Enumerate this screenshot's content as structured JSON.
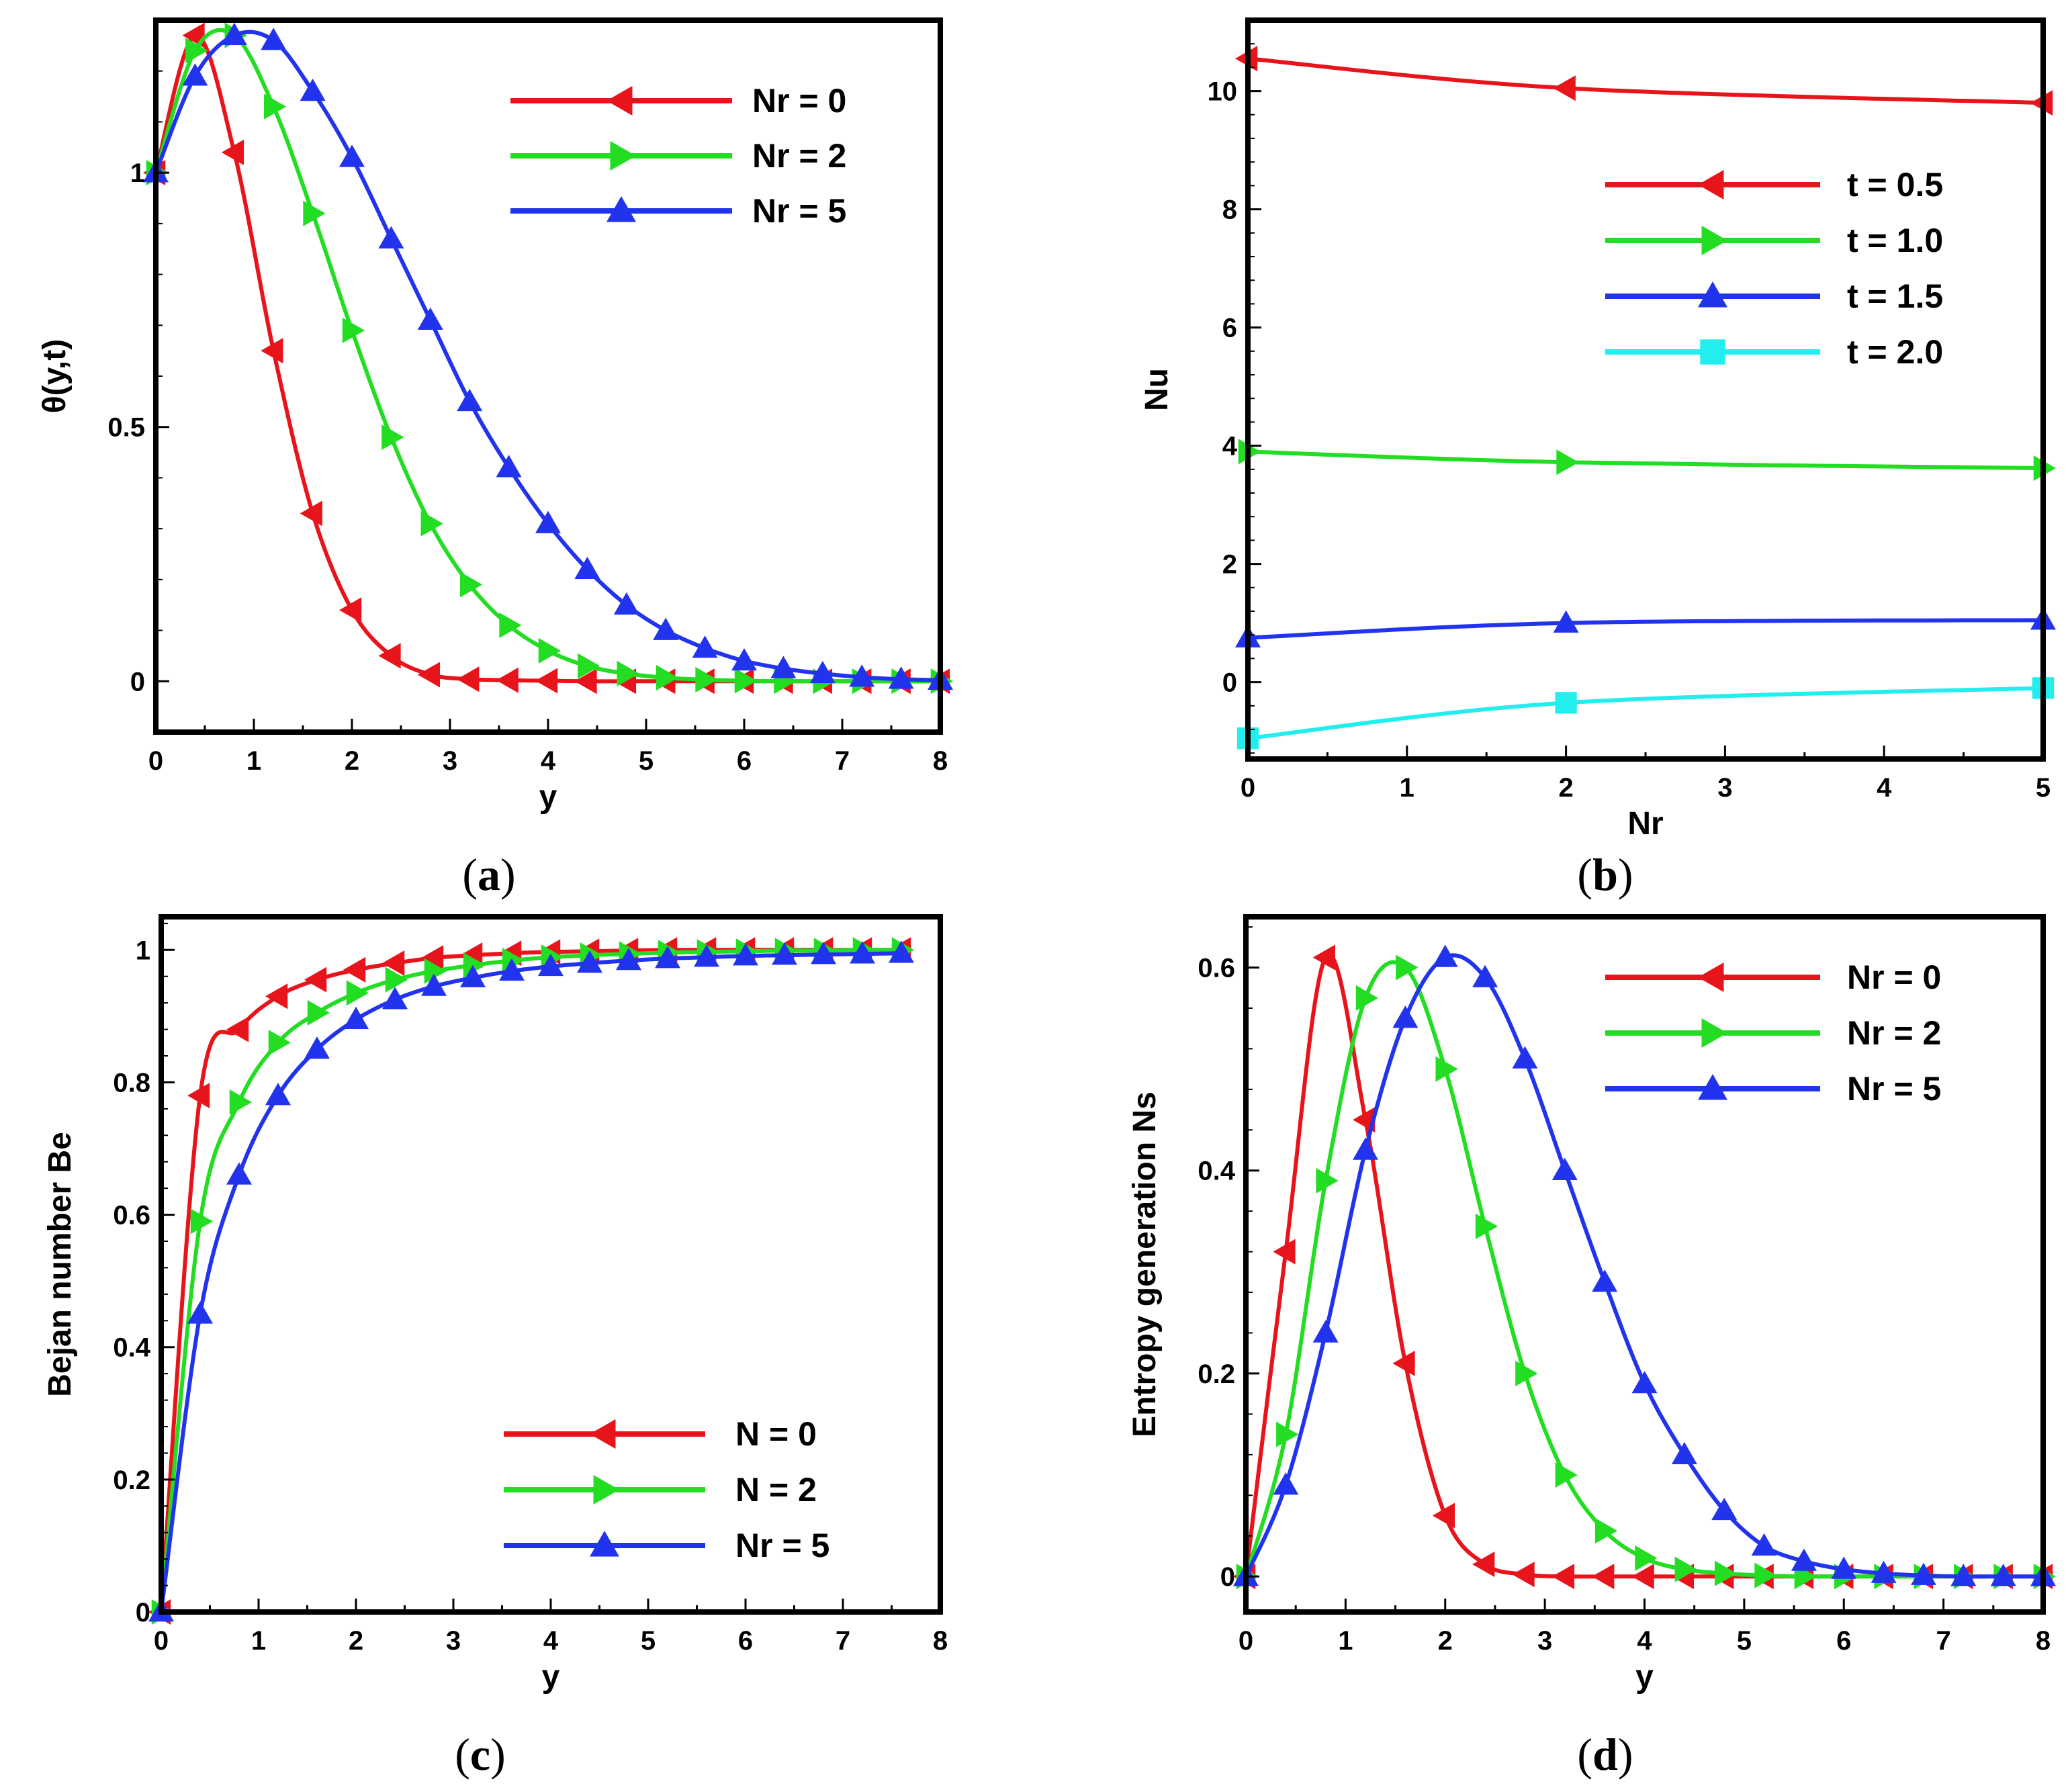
{
  "chart_data": [
    {
      "panel": "a",
      "caption_open": "(",
      "caption_letter": "a",
      "caption_close": ")",
      "type": "line",
      "title": "",
      "xlabel": "y",
      "ylabel": "θ(y,t)",
      "xlim": [
        0,
        8
      ],
      "ylim": [
        -0.1,
        1.3
      ],
      "xticks": [
        0,
        1,
        2,
        3,
        4,
        5,
        6,
        7,
        8
      ],
      "yticks": [
        0,
        0.5,
        1
      ],
      "ytick_labels": [
        "0",
        "0.5",
        "1"
      ],
      "legend_position": "top-right",
      "series": [
        {
          "name": "Nr = 0",
          "color": "#e8141b",
          "marker": "triangle-left",
          "x": [
            0,
            0.4,
            0.8,
            1.2,
            1.6,
            2.0,
            2.4,
            2.8,
            3.2,
            3.6,
            4.0,
            4.4,
            4.8,
            5.2,
            5.6,
            6.0,
            6.4,
            6.8,
            7.2,
            7.6,
            8.0
          ],
          "y": [
            1.0,
            1.27,
            1.04,
            0.65,
            0.33,
            0.14,
            0.05,
            0.013,
            0.004,
            0.002,
            0.001,
            0,
            0,
            0,
            0,
            0,
            0,
            0,
            0,
            0,
            0
          ]
        },
        {
          "name": "Nr = 2",
          "color": "#22dd22",
          "marker": "triangle-right",
          "x": [
            0,
            0.4,
            0.8,
            1.2,
            1.6,
            2.0,
            2.4,
            2.8,
            3.2,
            3.6,
            4.0,
            4.4,
            4.8,
            5.2,
            5.6,
            6.0,
            6.4,
            6.8,
            7.2,
            7.6,
            8.0
          ],
          "y": [
            1.0,
            1.24,
            1.27,
            1.13,
            0.92,
            0.69,
            0.48,
            0.31,
            0.19,
            0.11,
            0.06,
            0.03,
            0.015,
            0.007,
            0.003,
            0.001,
            0,
            0,
            0,
            0,
            0
          ]
        },
        {
          "name": "Nr = 5",
          "color": "#2233ee",
          "marker": "triangle-up",
          "x": [
            0,
            0.4,
            0.8,
            1.2,
            1.6,
            2.0,
            2.4,
            2.8,
            3.2,
            3.6,
            4.0,
            4.4,
            4.8,
            5.2,
            5.6,
            6.0,
            6.4,
            6.8,
            7.2,
            7.6,
            8.0
          ],
          "y": [
            1.0,
            1.19,
            1.27,
            1.26,
            1.16,
            1.03,
            0.87,
            0.71,
            0.55,
            0.42,
            0.31,
            0.22,
            0.15,
            0.1,
            0.065,
            0.04,
            0.025,
            0.015,
            0.008,
            0.004,
            0.002
          ]
        }
      ]
    },
    {
      "panel": "b",
      "caption_open": "(",
      "caption_letter": "b",
      "caption_close": ")",
      "type": "line",
      "title": "",
      "xlabel": "Nr",
      "ylabel": "Nu",
      "xlim": [
        0,
        5
      ],
      "ylim": [
        -1.3,
        11.2
      ],
      "xticks": [
        0,
        1,
        2,
        3,
        4,
        5
      ],
      "yticks": [
        0,
        2,
        4,
        6,
        8,
        10
      ],
      "legend_position": "right",
      "series": [
        {
          "name": "t = 0.5",
          "color": "#e8141b",
          "marker": "triangle-left",
          "x": [
            0,
            2,
            5
          ],
          "y": [
            10.55,
            10.05,
            9.8
          ]
        },
        {
          "name": "t = 1.0",
          "color": "#22dd22",
          "marker": "triangle-right",
          "x": [
            0,
            2,
            5
          ],
          "y": [
            3.9,
            3.72,
            3.62
          ]
        },
        {
          "name": "t = 1.5",
          "color": "#2233ee",
          "marker": "triangle-up",
          "x": [
            0,
            2,
            5
          ],
          "y": [
            0.75,
            1.0,
            1.05
          ]
        },
        {
          "name": "t = 2.0",
          "color": "#22eeee",
          "marker": "square",
          "x": [
            0,
            2,
            5
          ],
          "y": [
            -0.95,
            -0.35,
            -0.1
          ]
        }
      ]
    },
    {
      "panel": "c",
      "caption_open": "(",
      "caption_letter": "c",
      "caption_close": ")",
      "type": "line",
      "title": "",
      "xlabel": "y",
      "ylabel": "Bejan number Be",
      "xlim": [
        0,
        8
      ],
      "ylim": [
        0,
        1.05
      ],
      "xticks": [
        0,
        1,
        2,
        3,
        4,
        5,
        6,
        7,
        8
      ],
      "yticks": [
        0,
        0.2,
        0.4,
        0.6,
        0.8,
        1
      ],
      "ytick_labels": [
        "0",
        "0.2",
        "0.4",
        "0.6",
        "0.8",
        "1"
      ],
      "legend_position": "bottom-right",
      "series": [
        {
          "name": "N = 0",
          "color": "#e8141b",
          "marker": "triangle-left",
          "x": [
            0,
            0.4,
            0.8,
            1.2,
            1.6,
            2.0,
            2.4,
            2.8,
            3.2,
            3.6,
            4.0,
            4.4,
            4.8,
            5.2,
            5.6,
            6.0,
            6.4,
            6.8,
            7.2,
            7.6
          ],
          "y": [
            0,
            0.78,
            0.88,
            0.93,
            0.955,
            0.97,
            0.98,
            0.988,
            0.992,
            0.995,
            0.997,
            0.998,
            0.999,
            1,
            1,
            1,
            1,
            1,
            1,
            1
          ]
        },
        {
          "name": "N = 2",
          "color": "#22dd22",
          "marker": "triangle-right",
          "x": [
            0,
            0.4,
            0.8,
            1.2,
            1.6,
            2.0,
            2.4,
            2.8,
            3.2,
            3.6,
            4.0,
            4.4,
            4.8,
            5.2,
            5.6,
            6.0,
            6.4,
            6.8,
            7.2,
            7.6
          ],
          "y": [
            0,
            0.59,
            0.77,
            0.86,
            0.905,
            0.935,
            0.955,
            0.968,
            0.977,
            0.984,
            0.989,
            0.992,
            0.994,
            0.996,
            0.997,
            0.998,
            0.999,
            0.999,
            1,
            1
          ]
        },
        {
          "name": "Nr = 5",
          "color": "#2233ee",
          "marker": "triangle-up",
          "x": [
            0,
            0.4,
            0.8,
            1.2,
            1.6,
            2.0,
            2.4,
            2.8,
            3.2,
            3.6,
            4.0,
            4.4,
            4.8,
            5.2,
            5.6,
            6.0,
            6.4,
            6.8,
            7.2,
            7.6
          ],
          "y": [
            0,
            0.45,
            0.66,
            0.78,
            0.85,
            0.895,
            0.925,
            0.945,
            0.958,
            0.968,
            0.975,
            0.98,
            0.984,
            0.987,
            0.989,
            0.991,
            0.992,
            0.993,
            0.994,
            0.995
          ]
        }
      ]
    },
    {
      "panel": "d",
      "caption_open": "(",
      "caption_letter": "d",
      "caption_close": ")",
      "type": "line",
      "title": "",
      "xlabel": "y",
      "ylabel": "Entropy generation Ns",
      "xlim": [
        0,
        8
      ],
      "ylim": [
        -0.035,
        0.65
      ],
      "xticks": [
        0,
        1,
        2,
        3,
        4,
        5,
        6,
        7,
        8
      ],
      "yticks": [
        0,
        0.2,
        0.4,
        0.6
      ],
      "ytick_labels": [
        "0",
        "0.2",
        "0.4",
        "0.6"
      ],
      "legend_position": "top-right",
      "series": [
        {
          "name": "Nr = 0",
          "color": "#e8141b",
          "marker": "triangle-left",
          "x": [
            0,
            0.4,
            0.8,
            1.2,
            1.6,
            2.0,
            2.4,
            2.8,
            3.2,
            3.6,
            4.0,
            4.4,
            4.8,
            5.2,
            5.6,
            6.0,
            6.4,
            6.8,
            7.2,
            7.6,
            8.0
          ],
          "y": [
            0,
            0.32,
            0.61,
            0.45,
            0.21,
            0.06,
            0.012,
            0.002,
            0,
            0,
            0,
            0,
            0,
            0,
            0,
            0,
            0,
            0,
            0,
            0,
            0
          ]
        },
        {
          "name": "Nr = 2",
          "color": "#22dd22",
          "marker": "triangle-right",
          "x": [
            0,
            0.4,
            0.8,
            1.2,
            1.6,
            2.0,
            2.4,
            2.8,
            3.2,
            3.6,
            4.0,
            4.4,
            4.8,
            5.2,
            5.6,
            6.0,
            6.4,
            6.8,
            7.2,
            7.6,
            8.0
          ],
          "y": [
            0,
            0.14,
            0.39,
            0.57,
            0.6,
            0.5,
            0.345,
            0.2,
            0.1,
            0.045,
            0.018,
            0.007,
            0.003,
            0.001,
            0,
            0,
            0,
            0,
            0,
            0,
            0
          ]
        },
        {
          "name": "Nr = 5",
          "color": "#2233ee",
          "marker": "triangle-up",
          "x": [
            0,
            0.4,
            0.8,
            1.2,
            1.6,
            2.0,
            2.4,
            2.8,
            3.2,
            3.6,
            4.0,
            4.4,
            4.8,
            5.2,
            5.6,
            6.0,
            6.4,
            6.8,
            7.2,
            7.6,
            8.0
          ],
          "y": [
            0,
            0.09,
            0.24,
            0.42,
            0.55,
            0.61,
            0.59,
            0.51,
            0.4,
            0.29,
            0.19,
            0.12,
            0.065,
            0.03,
            0.015,
            0.007,
            0.003,
            0.001,
            0,
            0,
            0
          ]
        }
      ]
    }
  ]
}
